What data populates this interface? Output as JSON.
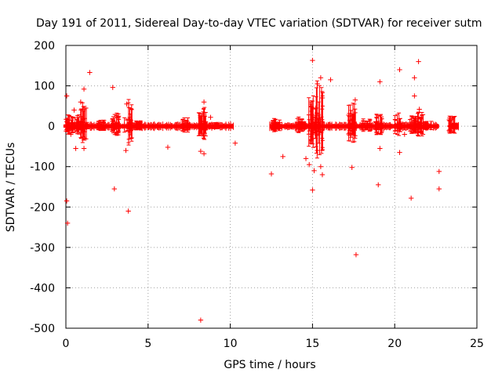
{
  "chart_data": {
    "type": "scatter",
    "title": "Day 191 of 2011, Sidereal Day-to-day VTEC variation (SDTVAR) for receiver sutm",
    "xlabel": "GPS time / hours",
    "ylabel": "SDTVAR / TECUs",
    "xlim": [
      0,
      25
    ],
    "ylim": [
      -500,
      200
    ],
    "xticks": [
      0,
      5,
      10,
      15,
      20,
      25
    ],
    "yticks": [
      -500,
      -400,
      -300,
      -200,
      -100,
      0,
      100,
      200
    ],
    "xtick_labels": [
      "0",
      "5",
      "10",
      "15",
      "20",
      "25"
    ],
    "ytick_labels": [
      "-500",
      "-400",
      "-300",
      "-200",
      "-100",
      "0",
      "100",
      "200"
    ],
    "grid": true,
    "marker": "plus",
    "series_color": "#ff0000",
    "band_segments": [
      {
        "start": 0.0,
        "end": 10.2,
        "halfwidth": 8
      },
      {
        "start": 12.4,
        "end": 22.7,
        "halfwidth": 8
      },
      {
        "start": 23.3,
        "end": 23.9,
        "halfwidth": 12
      }
    ],
    "bursts": [
      {
        "x": 0.2,
        "amp": 30
      },
      {
        "x": 0.6,
        "amp": 30
      },
      {
        "x": 1.1,
        "amp": 60
      },
      {
        "x": 2.1,
        "amp": 15
      },
      {
        "x": 3.0,
        "amp": 35
      },
      {
        "x": 3.8,
        "amp": 70
      },
      {
        "x": 4.5,
        "amp": 15
      },
      {
        "x": 7.3,
        "amp": 25
      },
      {
        "x": 8.3,
        "amp": 50
      },
      {
        "x": 9.0,
        "amp": 10
      },
      {
        "x": 12.8,
        "amp": 20
      },
      {
        "x": 14.3,
        "amp": 25
      },
      {
        "x": 15.0,
        "amp": 80
      },
      {
        "x": 15.4,
        "amp": 120
      },
      {
        "x": 17.4,
        "amp": 60
      },
      {
        "x": 18.3,
        "amp": 20
      },
      {
        "x": 19.0,
        "amp": 30
      },
      {
        "x": 20.2,
        "amp": 35
      },
      {
        "x": 21.1,
        "amp": 30
      },
      {
        "x": 21.5,
        "amp": 40
      },
      {
        "x": 22.0,
        "amp": 15
      },
      {
        "x": 23.5,
        "amp": 25
      }
    ],
    "outliers": [
      {
        "x": 0.05,
        "y": 75
      },
      {
        "x": 0.05,
        "y": -185
      },
      {
        "x": 0.1,
        "y": -240
      },
      {
        "x": 0.3,
        "y": -20
      },
      {
        "x": 0.5,
        "y": 40
      },
      {
        "x": 0.6,
        "y": -55
      },
      {
        "x": 0.9,
        "y": 60
      },
      {
        "x": 1.1,
        "y": 92
      },
      {
        "x": 1.1,
        "y": -55
      },
      {
        "x": 1.45,
        "y": 133
      },
      {
        "x": 2.85,
        "y": 96
      },
      {
        "x": 2.95,
        "y": -155
      },
      {
        "x": 3.2,
        "y": 25
      },
      {
        "x": 3.65,
        "y": -60
      },
      {
        "x": 3.7,
        "y": 55
      },
      {
        "x": 3.8,
        "y": -210
      },
      {
        "x": 6.2,
        "y": -52
      },
      {
        "x": 8.2,
        "y": -62
      },
      {
        "x": 8.2,
        "y": -480
      },
      {
        "x": 8.4,
        "y": 60
      },
      {
        "x": 8.4,
        "y": -68
      },
      {
        "x": 8.8,
        "y": 22
      },
      {
        "x": 10.3,
        "y": -42
      },
      {
        "x": 12.5,
        "y": -118
      },
      {
        "x": 13.2,
        "y": -75
      },
      {
        "x": 14.6,
        "y": -80
      },
      {
        "x": 14.8,
        "y": -95
      },
      {
        "x": 15.0,
        "y": 163
      },
      {
        "x": 15.0,
        "y": -158
      },
      {
        "x": 15.1,
        "y": -110
      },
      {
        "x": 15.2,
        "y": 45
      },
      {
        "x": 15.3,
        "y": 105
      },
      {
        "x": 15.3,
        "y": -60
      },
      {
        "x": 15.5,
        "y": 120
      },
      {
        "x": 15.5,
        "y": -100
      },
      {
        "x": 15.6,
        "y": 70
      },
      {
        "x": 15.6,
        "y": -120
      },
      {
        "x": 16.1,
        "y": 115
      },
      {
        "x": 17.4,
        "y": -102
      },
      {
        "x": 17.6,
        "y": 65
      },
      {
        "x": 17.65,
        "y": -318
      },
      {
        "x": 19.0,
        "y": -145
      },
      {
        "x": 19.1,
        "y": 110
      },
      {
        "x": 19.1,
        "y": -55
      },
      {
        "x": 20.3,
        "y": 140
      },
      {
        "x": 20.3,
        "y": -65
      },
      {
        "x": 20.6,
        "y": -20
      },
      {
        "x": 21.0,
        "y": -178
      },
      {
        "x": 21.2,
        "y": 120
      },
      {
        "x": 21.2,
        "y": 75
      },
      {
        "x": 21.45,
        "y": 160
      },
      {
        "x": 21.5,
        "y": 42
      },
      {
        "x": 22.7,
        "y": -112
      },
      {
        "x": 22.7,
        "y": -155
      },
      {
        "x": 23.5,
        "y": 20
      }
    ]
  }
}
